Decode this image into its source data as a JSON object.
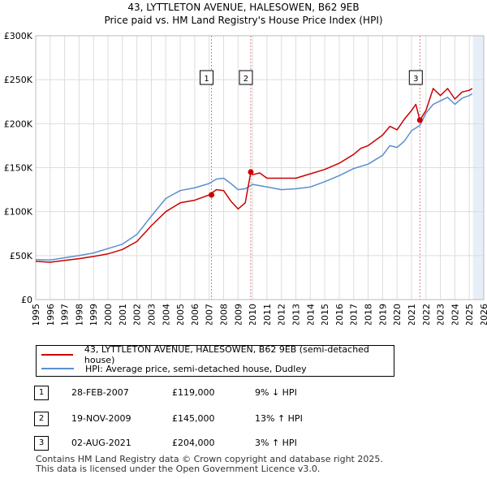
{
  "header": {
    "title_line1": "43, LYTTLETON AVENUE, HALESOWEN, B62 9EB",
    "title_line2": "Price paid vs. HM Land Registry's House Price Index (HPI)"
  },
  "legend": {
    "property_label": "43, LYTTLETON AVENUE, HALESOWEN, B62 9EB (semi-detached house)",
    "hpi_label": "HPI: Average price, semi-detached house, Dudley"
  },
  "colors": {
    "property": "#cc0000",
    "hpi": "#5b8fcf",
    "shade": "#e6eef8",
    "grid": "#dddddd"
  },
  "transactions": [
    {
      "num": "1",
      "date": "28-FEB-2007",
      "price": "£119,000",
      "hpi": "9% ↓ HPI"
    },
    {
      "num": "2",
      "date": "19-NOV-2009",
      "price": "£145,000",
      "hpi": "13% ↑ HPI"
    },
    {
      "num": "3",
      "date": "02-AUG-2021",
      "price": "£204,000",
      "hpi": "3% ↑ HPI"
    }
  ],
  "footer": {
    "line1": "Contains HM Land Registry data © Crown copyright and database right 2025.",
    "line2": "This data is licensed under the Open Government Licence v3.0."
  },
  "chart_data": {
    "type": "line",
    "title": "Price paid vs. HM Land Registry's House Price Index (HPI)",
    "xlim": [
      1995,
      2026
    ],
    "ylim": [
      0,
      300000
    ],
    "x_ticks": [
      1995,
      1996,
      1997,
      1998,
      1999,
      2000,
      2001,
      2002,
      2003,
      2004,
      2005,
      2006,
      2007,
      2008,
      2009,
      2010,
      2011,
      2012,
      2013,
      2014,
      2015,
      2016,
      2017,
      2018,
      2019,
      2020,
      2021,
      2022,
      2023,
      2024,
      2025,
      2026
    ],
    "y_ticks": [
      {
        "value": 0,
        "label": "£0"
      },
      {
        "value": 50000,
        "label": "£50K"
      },
      {
        "value": 100000,
        "label": "£100K"
      },
      {
        "value": 150000,
        "label": "£150K"
      },
      {
        "value": 200000,
        "label": "£200K"
      },
      {
        "value": 250000,
        "label": "£250K"
      },
      {
        "value": 300000,
        "label": "£300K"
      }
    ],
    "shaded_regions": [
      {
        "from": 2025.25,
        "to": 2026
      }
    ],
    "series": [
      {
        "name": "43, LYTTLETON AVENUE, HALESOWEN, B62 9EB (semi-detached house)",
        "color": "#cc0000",
        "points": [
          [
            1995,
            43500
          ],
          [
            1996,
            42500
          ],
          [
            1997,
            44500
          ],
          [
            1998,
            46500
          ],
          [
            1999,
            49000
          ],
          [
            2000,
            52000
          ],
          [
            2001,
            57000
          ],
          [
            2002,
            66000
          ],
          [
            2003,
            84000
          ],
          [
            2004,
            100000
          ],
          [
            2005,
            110000
          ],
          [
            2006,
            113000
          ],
          [
            2007,
            119000
          ],
          [
            2007.5,
            125000
          ],
          [
            2008,
            124000
          ],
          [
            2008.5,
            112000
          ],
          [
            2009,
            103000
          ],
          [
            2009.5,
            110000
          ],
          [
            2009.88,
            145000
          ],
          [
            2010,
            142000
          ],
          [
            2010.5,
            144000
          ],
          [
            2011,
            138000
          ],
          [
            2012,
            138000
          ],
          [
            2013,
            138000
          ],
          [
            2014,
            143000
          ],
          [
            2015,
            148000
          ],
          [
            2016,
            155000
          ],
          [
            2017,
            165000
          ],
          [
            2017.5,
            172000
          ],
          [
            2018,
            175000
          ],
          [
            2019,
            187000
          ],
          [
            2019.5,
            197000
          ],
          [
            2020,
            193000
          ],
          [
            2020.5,
            205000
          ],
          [
            2021,
            215000
          ],
          [
            2021.3,
            222000
          ],
          [
            2021.58,
            204000
          ],
          [
            2022,
            215000
          ],
          [
            2022.5,
            240000
          ],
          [
            2023,
            232000
          ],
          [
            2023.5,
            240000
          ],
          [
            2024,
            228000
          ],
          [
            2024.5,
            236000
          ],
          [
            2025,
            238000
          ],
          [
            2025.2,
            240000
          ]
        ],
        "markers": [
          {
            "x": 2007.16,
            "y": 119000,
            "label": "1"
          },
          {
            "x": 2009.88,
            "y": 145000,
            "label": "2"
          },
          {
            "x": 2021.58,
            "y": 204000,
            "label": "3"
          }
        ]
      },
      {
        "name": "HPI: Average price, semi-detached house, Dudley",
        "color": "#5b8fcf",
        "points": [
          [
            1995,
            45500
          ],
          [
            1996,
            45000
          ],
          [
            1997,
            47500
          ],
          [
            1998,
            50000
          ],
          [
            1999,
            53000
          ],
          [
            2000,
            58000
          ],
          [
            2001,
            63000
          ],
          [
            2002,
            74000
          ],
          [
            2003,
            95000
          ],
          [
            2004,
            115000
          ],
          [
            2005,
            124000
          ],
          [
            2006,
            127000
          ],
          [
            2007,
            132000
          ],
          [
            2007.5,
            137000
          ],
          [
            2008,
            138000
          ],
          [
            2008.5,
            132000
          ],
          [
            2009,
            125000
          ],
          [
            2009.5,
            126000
          ],
          [
            2010,
            131000
          ],
          [
            2011,
            128000
          ],
          [
            2012,
            125000
          ],
          [
            2013,
            126000
          ],
          [
            2014,
            128000
          ],
          [
            2015,
            134000
          ],
          [
            2016,
            141000
          ],
          [
            2017,
            149000
          ],
          [
            2018,
            154000
          ],
          [
            2019,
            164000
          ],
          [
            2019.5,
            175000
          ],
          [
            2020,
            173000
          ],
          [
            2020.5,
            180000
          ],
          [
            2021,
            192000
          ],
          [
            2021.58,
            198000
          ],
          [
            2022,
            212000
          ],
          [
            2022.5,
            222000
          ],
          [
            2023,
            226000
          ],
          [
            2023.5,
            230000
          ],
          [
            2024,
            222000
          ],
          [
            2024.5,
            229000
          ],
          [
            2025,
            232000
          ],
          [
            2025.2,
            234000
          ]
        ]
      }
    ]
  }
}
